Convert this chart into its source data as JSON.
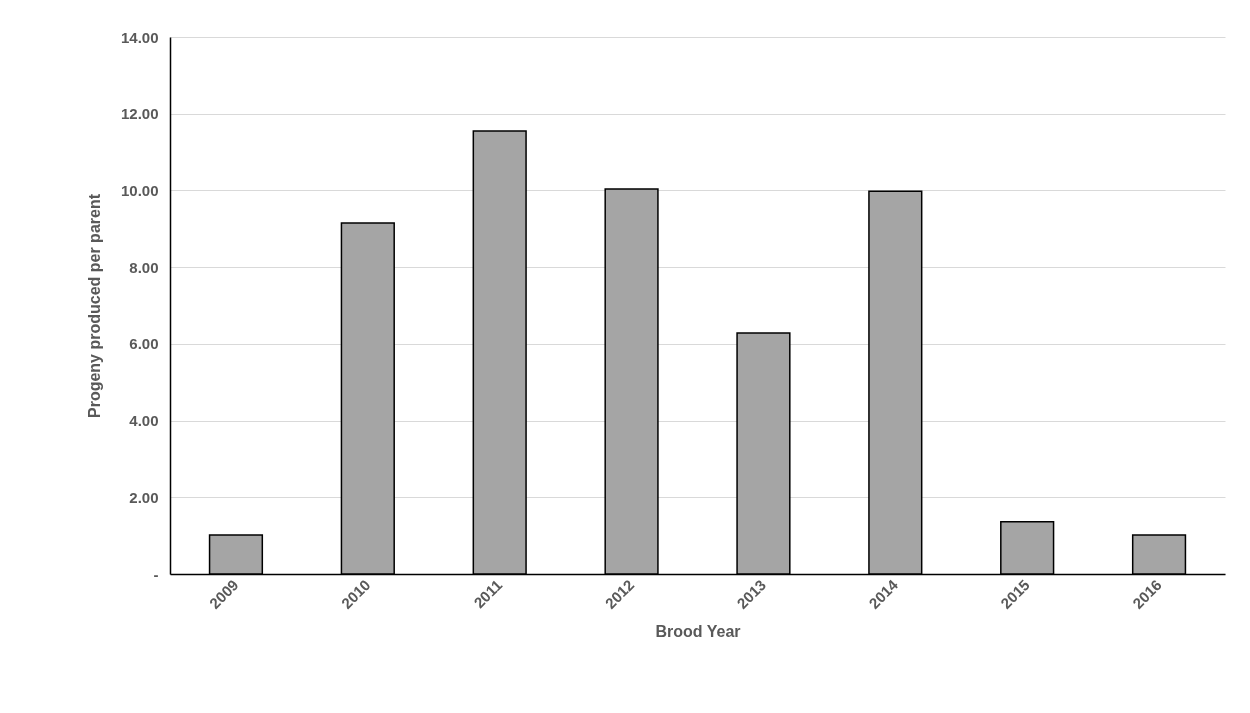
{
  "chart_data": {
    "type": "bar",
    "xlabel": "Brood Year",
    "ylabel": "Progeny produced per parent",
    "categories": [
      "2009",
      "2010",
      "2011",
      "2012",
      "2013",
      "2014",
      "2015",
      "2016"
    ],
    "values": [
      1.02,
      9.15,
      11.55,
      10.04,
      6.28,
      9.98,
      1.36,
      1.02
    ],
    "color": "#a5a5a5",
    "ylim": [
      0,
      14
    ],
    "yticks": [
      {
        "value": 0,
        "label": "-"
      },
      {
        "value": 2,
        "label": "2.00"
      },
      {
        "value": 4,
        "label": "4.00"
      },
      {
        "value": 6,
        "label": "6.00"
      },
      {
        "value": 8,
        "label": "8.00"
      },
      {
        "value": 10,
        "label": "10.00"
      },
      {
        "value": 12,
        "label": "12.00"
      },
      {
        "value": 14,
        "label": "14.00"
      }
    ],
    "grid": "y"
  }
}
